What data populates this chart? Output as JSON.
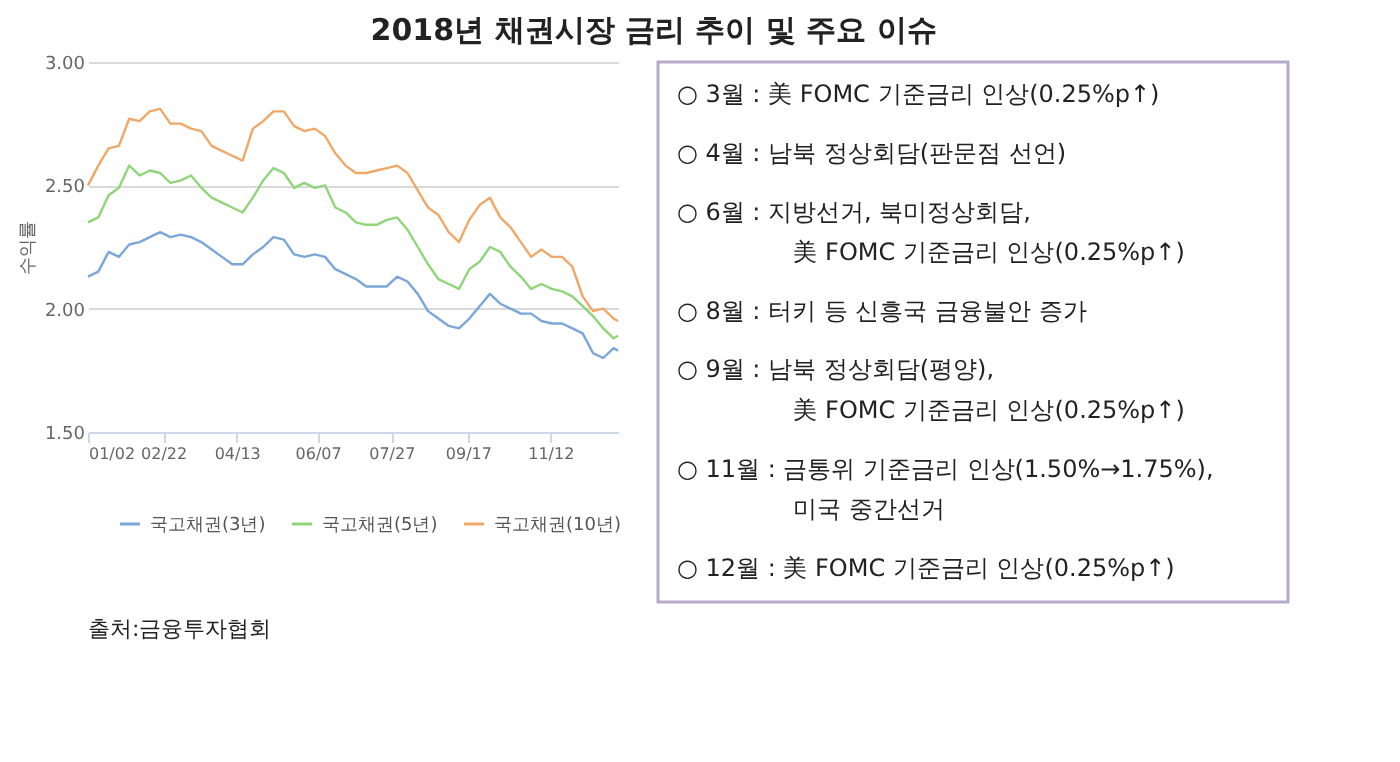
{
  "chart_data": [
    {
      "type": "line",
      "title": "2018년 채권시장 금리 추이 및 주요 이슈",
      "ylabel": "수익률",
      "annotations": [
        "출처:금융투자협회"
      ],
      "x": [
        "2018-01-02",
        "2018-01-09",
        "2018-01-16",
        "2018-01-23",
        "2018-01-30",
        "2018-02-06",
        "2018-02-13",
        "2018-02-20",
        "2018-02-27",
        "2018-03-06",
        "2018-03-13",
        "2018-03-20",
        "2018-03-27",
        "2018-04-03",
        "2018-04-10",
        "2018-04-17",
        "2018-04-24",
        "2018-05-01",
        "2018-05-08",
        "2018-05-15",
        "2018-05-22",
        "2018-05-29",
        "2018-06-05",
        "2018-06-12",
        "2018-06-19",
        "2018-06-26",
        "2018-07-03",
        "2018-07-10",
        "2018-07-17",
        "2018-07-24",
        "2018-07-31",
        "2018-08-07",
        "2018-08-14",
        "2018-08-21",
        "2018-08-28",
        "2018-09-04",
        "2018-09-11",
        "2018-09-18",
        "2018-09-25",
        "2018-10-02",
        "2018-10-09",
        "2018-10-16",
        "2018-10-23",
        "2018-10-30",
        "2018-11-06",
        "2018-11-13",
        "2018-11-20",
        "2018-11-27",
        "2018-12-04",
        "2018-12-11",
        "2018-12-18",
        "2018-12-25",
        "2018-12-28"
      ],
      "series": [
        {
          "name": "국고채권(3년)",
          "color": "#7aa6d9",
          "values": [
            2.13,
            2.15,
            2.23,
            2.21,
            2.26,
            2.27,
            2.29,
            2.31,
            2.29,
            2.3,
            2.29,
            2.27,
            2.24,
            2.21,
            2.18,
            2.18,
            2.22,
            2.25,
            2.29,
            2.28,
            2.22,
            2.21,
            2.22,
            2.21,
            2.16,
            2.14,
            2.12,
            2.09,
            2.09,
            2.09,
            2.13,
            2.11,
            2.06,
            1.99,
            1.96,
            1.93,
            1.92,
            1.96,
            2.01,
            2.06,
            2.02,
            2.0,
            1.98,
            1.98,
            1.95,
            1.94,
            1.94,
            1.92,
            1.9,
            1.82,
            1.8,
            1.84,
            1.83
          ]
        },
        {
          "name": "국고채권(5년)",
          "color": "#8fd67a",
          "values": [
            2.35,
            2.37,
            2.46,
            2.49,
            2.58,
            2.54,
            2.56,
            2.55,
            2.51,
            2.52,
            2.54,
            2.49,
            2.45,
            2.43,
            2.41,
            2.39,
            2.45,
            2.52,
            2.57,
            2.55,
            2.49,
            2.51,
            2.49,
            2.5,
            2.41,
            2.39,
            2.35,
            2.34,
            2.34,
            2.36,
            2.37,
            2.32,
            2.25,
            2.18,
            2.12,
            2.1,
            2.08,
            2.16,
            2.19,
            2.25,
            2.23,
            2.17,
            2.13,
            2.08,
            2.1,
            2.08,
            2.07,
            2.05,
            2.01,
            1.97,
            1.92,
            1.88,
            1.89
          ]
        },
        {
          "name": "국고채권(10년)",
          "color": "#f0a868",
          "values": [
            2.5,
            2.58,
            2.65,
            2.66,
            2.77,
            2.76,
            2.8,
            2.81,
            2.75,
            2.75,
            2.73,
            2.72,
            2.66,
            2.64,
            2.62,
            2.6,
            2.73,
            2.76,
            2.8,
            2.8,
            2.74,
            2.72,
            2.73,
            2.7,
            2.63,
            2.58,
            2.55,
            2.55,
            2.56,
            2.57,
            2.58,
            2.55,
            2.48,
            2.41,
            2.38,
            2.31,
            2.27,
            2.36,
            2.42,
            2.45,
            2.37,
            2.33,
            2.27,
            2.21,
            2.24,
            2.21,
            2.21,
            2.17,
            2.05,
            1.99,
            2.0,
            1.96,
            1.95
          ]
        }
      ],
      "xlim": [
        "2018-01-02",
        "2018-12-28"
      ],
      "xticks": [
        {
          "value": "2018-01-02",
          "label": "01/02"
        },
        {
          "value": "2018-02-22",
          "label": "02/22"
        },
        {
          "value": "2018-04-13",
          "label": "04/13"
        },
        {
          "value": "2018-06-07",
          "label": "06/07"
        },
        {
          "value": "2018-07-27",
          "label": "07/27"
        },
        {
          "value": "2018-09-17",
          "label": "09/17"
        },
        {
          "value": "2018-11-12",
          "label": "11/12"
        }
      ],
      "ylim": [
        1.5,
        3.0
      ],
      "yticks": [
        {
          "value": 1.5,
          "label": "1.50"
        },
        {
          "value": 2.0,
          "label": "2.00"
        },
        {
          "value": 2.5,
          "label": "2.50"
        },
        {
          "value": 3.0,
          "label": "3.00"
        }
      ],
      "grid": "y",
      "legend": "bottom",
      "marker": "none",
      "line_style": "solid"
    },
    {
      "type": "other",
      "annotations": [
        "○ 3월 : 美 FOMC 기준금리 인상(0.25%p↑)",
        "○ 4월 : 남북 정상회담(판문점 선언)",
        "○ 6월 : 지방선거, 북미정상회담,\n美 FOMC 기준금리 인상(0.25%p↑)",
        "○ 8월 : 터키 등 신흥국 금융불안 증가",
        "○ 9월 : 남북 정상회담(평양),\n美 FOMC 기준금리 인상(0.25%p↑)",
        "○ 11월 : 금통위 기준금리 인상(1.50%→1.75%),\n미국 중간선거",
        "○ 12월 : 美 FOMC 기준금리 인상(0.25%p↑)"
      ]
    }
  ]
}
